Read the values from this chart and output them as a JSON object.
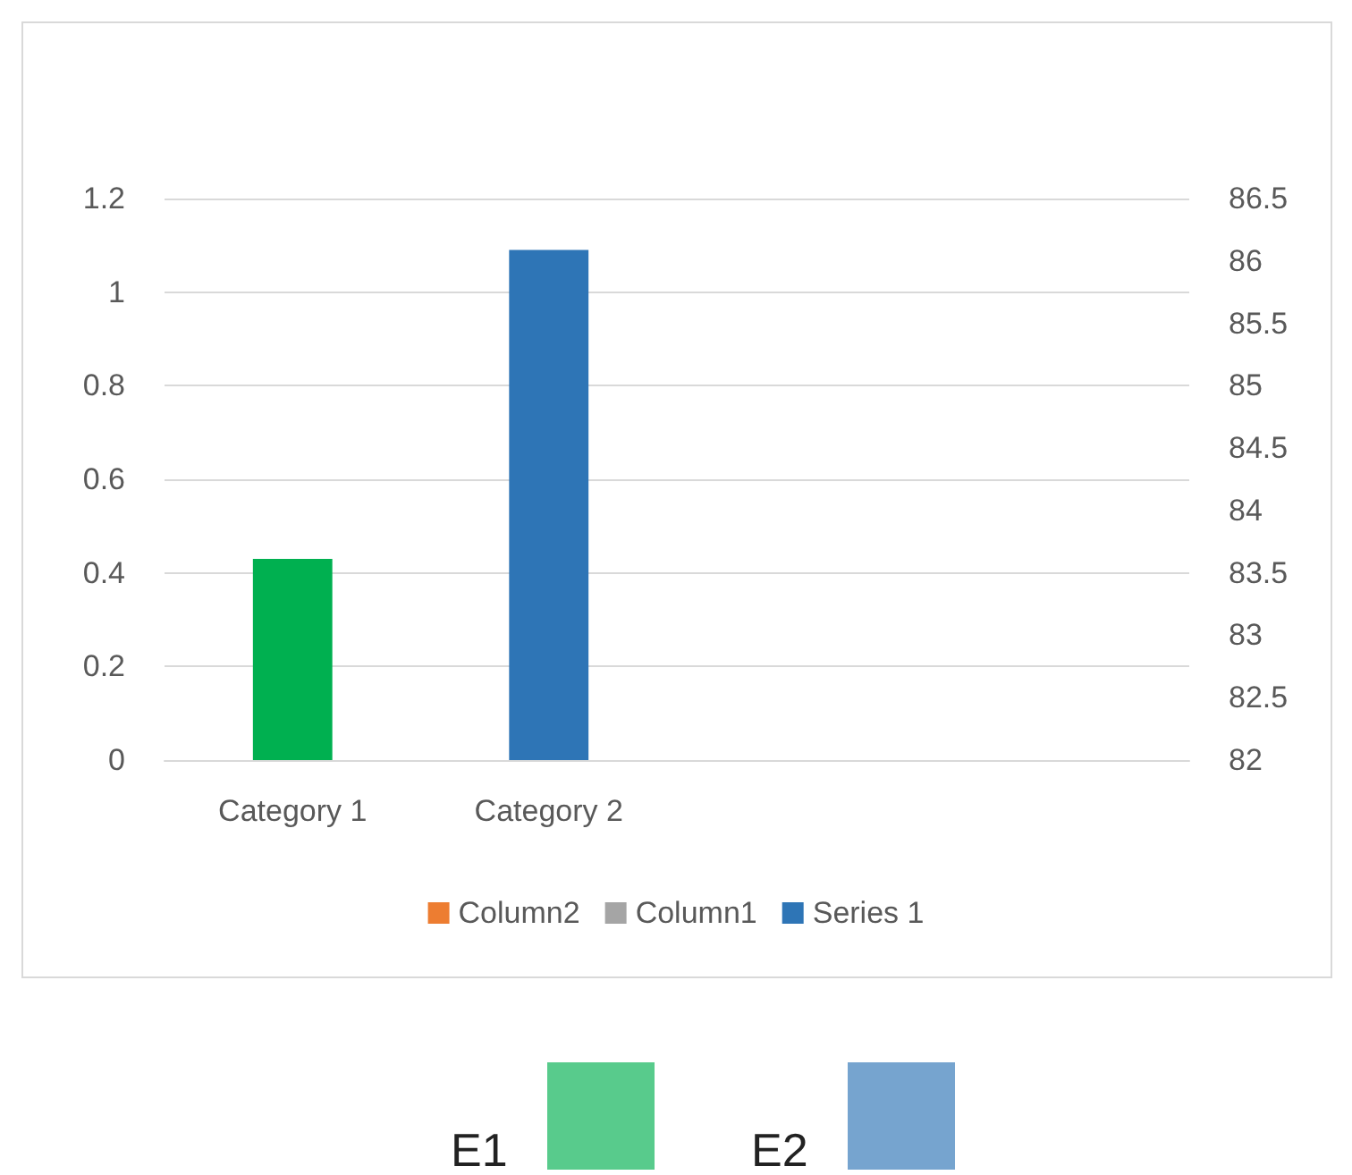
{
  "chart_data": {
    "type": "bar",
    "categories": [
      "Category 1",
      "Category 2",
      null,
      null
    ],
    "series": [
      {
        "name": "Column2",
        "color": "#ed7d31",
        "values": [
          null,
          null,
          null,
          null
        ]
      },
      {
        "name": "Column1",
        "color": "#a5a5a5",
        "values": [
          null,
          null,
          null,
          null
        ]
      },
      {
        "name": "Series 1",
        "color": "#2e75b6",
        "colors": [
          "#00b050",
          "#2e75b6",
          null,
          null
        ],
        "values": [
          0.43,
          1.09,
          null,
          null
        ]
      }
    ],
    "ylim": [
      0,
      1.2
    ],
    "yticks": [
      0,
      0.2,
      0.4,
      0.6,
      0.8,
      1,
      1.2
    ],
    "y2lim": [
      82,
      86.5
    ],
    "y2ticks": [
      82,
      82.5,
      83,
      83.5,
      84,
      84.5,
      85,
      85.5,
      86,
      86.5
    ],
    "grid": "y",
    "legend": "bottom",
    "annotations": [
      "E1",
      "E2"
    ]
  }
}
